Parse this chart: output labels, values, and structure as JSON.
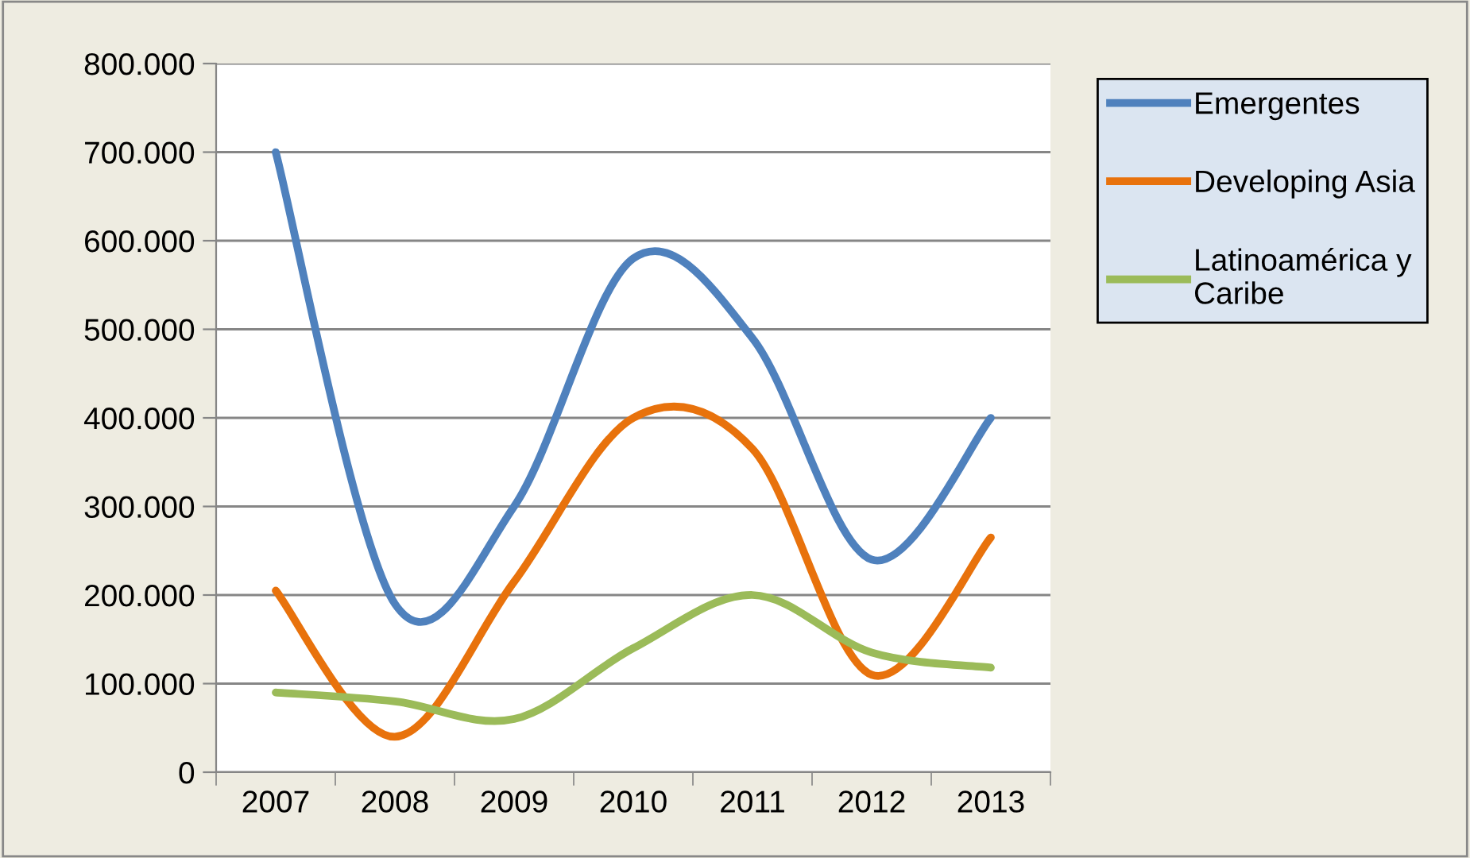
{
  "chart_data": {
    "type": "line",
    "categories": [
      "2007",
      "2008",
      "2009",
      "2010",
      "2011",
      "2012",
      "2013"
    ],
    "series": [
      {
        "name": "Emergentes",
        "color": "#4f81bd",
        "values": [
          700000,
          190000,
          300000,
          580000,
          490000,
          240000,
          400000
        ]
      },
      {
        "name": "Developing Asia",
        "color": "#e8720c",
        "values": [
          205000,
          40000,
          215000,
          400000,
          365000,
          110000,
          265000
        ]
      },
      {
        "name": "Latinoamérica y Caribe",
        "color": "#9bbb59",
        "values": [
          90000,
          80000,
          60000,
          140000,
          200000,
          135000,
          118000
        ]
      }
    ],
    "ylim": [
      0,
      800000
    ],
    "yticks": [
      {
        "value": 0,
        "label": "0"
      },
      {
        "value": 100000,
        "label": "100.000"
      },
      {
        "value": 200000,
        "label": "200.000"
      },
      {
        "value": 300000,
        "label": "300.000"
      },
      {
        "value": 400000,
        "label": "400.000"
      },
      {
        "value": 500000,
        "label": "500.000"
      },
      {
        "value": 600000,
        "label": "600.000"
      },
      {
        "value": 700000,
        "label": "700.000"
      },
      {
        "value": 800000,
        "label": "800.000"
      }
    ],
    "grid": "y",
    "legend": "right",
    "marker": "none",
    "line_style": "solid"
  }
}
